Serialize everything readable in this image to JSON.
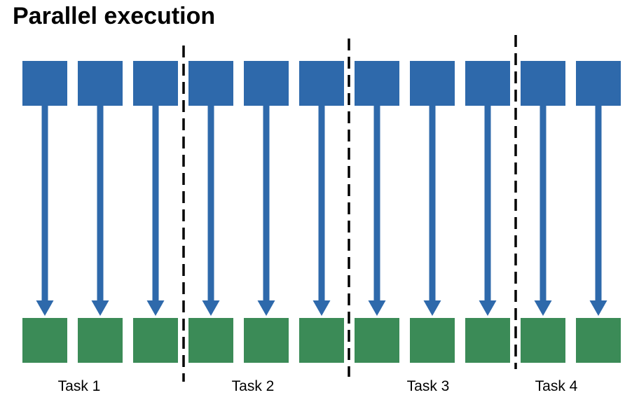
{
  "title": "Parallel execution",
  "colors": {
    "input_block": "#2E69AB",
    "output_block": "#3B8B57",
    "arrow": "#2E69AB",
    "divider": "#000000"
  },
  "diagram": {
    "item_count": 11,
    "tasks": [
      {
        "label": "Task 1",
        "items": 3
      },
      {
        "label": "Task 2",
        "items": 3
      },
      {
        "label": "Task 3",
        "items": 3
      },
      {
        "label": "Task 4",
        "items": 2
      }
    ]
  }
}
